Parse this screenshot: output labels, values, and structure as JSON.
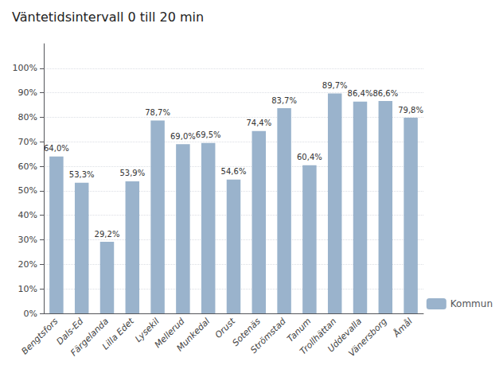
{
  "chart_data": {
    "type": "bar",
    "title": "Väntetidsintervall 0 till 20 min",
    "categories": [
      "Bengtsfors",
      "Dals-Ed",
      "Färgelanda",
      "Lilla Edet",
      "Lysekil",
      "Mellerud",
      "Munkedal",
      "Orust",
      "Sotenäs",
      "Strömstad",
      "Tanum",
      "Trollhättan",
      "Uddevalla",
      "Vänersborg",
      "Åmål"
    ],
    "series": [
      {
        "name": "Kommun",
        "color": "#9ab3cc",
        "values": [
          64.0,
          53.3,
          29.2,
          53.9,
          78.7,
          69.0,
          69.5,
          54.6,
          74.4,
          83.7,
          60.4,
          89.7,
          86.4,
          86.6,
          79.8
        ],
        "value_labels": [
          "64,0%",
          "53,3%",
          "29,2%",
          "53,9%",
          "78,7%",
          "69,0%",
          "69,5%",
          "54,6%",
          "74,4%",
          "83,7%",
          "60,4%",
          "89,7%",
          "86,4%",
          "86,6%",
          "79,8%"
        ]
      }
    ],
    "ylim": [
      0,
      110
    ],
    "yticks": [
      {
        "value": 0,
        "label": "0%"
      },
      {
        "value": 10,
        "label": "10%"
      },
      {
        "value": 20,
        "label": "20%"
      },
      {
        "value": 30,
        "label": "30%"
      },
      {
        "value": 40,
        "label": "40%"
      },
      {
        "value": 50,
        "label": "50%"
      },
      {
        "value": 60,
        "label": "60%"
      },
      {
        "value": 70,
        "label": "70%"
      },
      {
        "value": 80,
        "label": "80%"
      },
      {
        "value": 90,
        "label": "90%"
      },
      {
        "value": 100,
        "label": "100%"
      }
    ],
    "grid": true,
    "data_labels": true,
    "legend": "lower right"
  }
}
